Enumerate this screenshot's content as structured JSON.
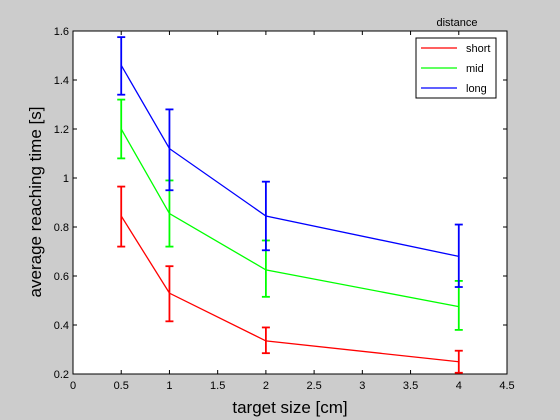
{
  "chart_data": {
    "type": "line",
    "xlabel": "target size [cm]",
    "ylabel": "average reaching time [s]",
    "xlim": [
      0,
      4.5
    ],
    "ylim": [
      0.2,
      1.6
    ],
    "xticks": [
      "0",
      "0.5",
      "1",
      "1.5",
      "2",
      "2.5",
      "3",
      "3.5",
      "4",
      "4.5"
    ],
    "yticks": [
      "0.2",
      "0.4",
      "0.6",
      "0.8",
      "1",
      "1.2",
      "1.4",
      "1.6"
    ],
    "grid": false,
    "legend": {
      "title": "distance",
      "position": "top-right"
    },
    "x": [
      0.5,
      1,
      2,
      4
    ],
    "series": [
      {
        "name": "short",
        "color": "#ff0000",
        "values": [
          0.845,
          0.53,
          0.335,
          0.25
        ],
        "err_low": [
          0.72,
          0.415,
          0.285,
          0.205
        ],
        "err_high": [
          0.965,
          0.64,
          0.39,
          0.295
        ]
      },
      {
        "name": "mid",
        "color": "#00ff00",
        "values": [
          1.2,
          0.855,
          0.625,
          0.475
        ],
        "err_low": [
          1.08,
          0.72,
          0.515,
          0.38
        ],
        "err_high": [
          1.32,
          0.99,
          0.745,
          0.58
        ]
      },
      {
        "name": "long",
        "color": "#0000ff",
        "values": [
          1.46,
          1.12,
          0.845,
          0.68
        ],
        "err_low": [
          1.34,
          0.95,
          0.705,
          0.555
        ],
        "err_high": [
          1.575,
          1.28,
          0.985,
          0.81
        ]
      }
    ]
  }
}
